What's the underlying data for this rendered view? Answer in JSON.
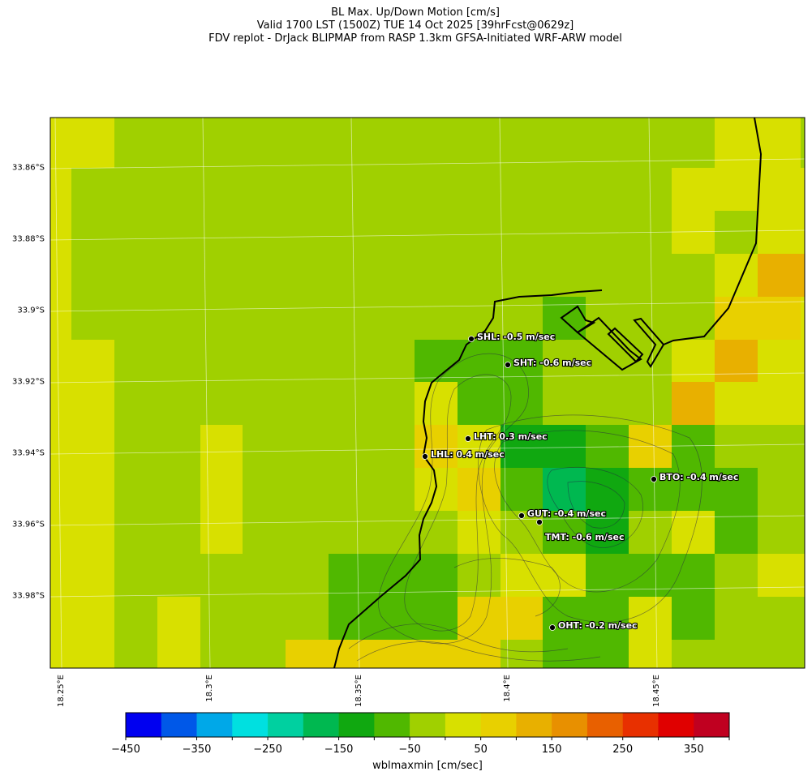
{
  "title": {
    "line1": "BL Max. Up/Down Motion [cm/s]",
    "line2": "Valid 1700 LST (1500Z) TUE 14 Oct 2025 [39hrFcst@0629z]",
    "line3": "FDV replot - DrJack BLIPMAP from RASP 1.3km GFSA-Initiated WRF-ARW model"
  },
  "lat_labels": [
    "33.86°S",
    "33.88°S",
    "33.9°S",
    "33.92°S",
    "33.94°S",
    "33.96°S",
    "33.98°S"
  ],
  "lon_labels": [
    "18.25°E",
    "18.3°E",
    "18.35°E",
    "18.4°E",
    "18.45°E"
  ],
  "colorbar": {
    "label": "wblmaxmin [cm/sec]",
    "ticks": [
      "−450",
      "−350",
      "−250",
      "−150",
      "−50",
      "50",
      "150",
      "250",
      "350"
    ],
    "colors": [
      "#0000f0",
      "#0058e8",
      "#00a8e8",
      "#00e0e0",
      "#00d0a0",
      "#00b850",
      "#10a810",
      "#50b800",
      "#a0d000",
      "#d8e000",
      "#e8d000",
      "#e8b000",
      "#e89000",
      "#e86000",
      "#e83000",
      "#e00000",
      "#c00020"
    ]
  },
  "grid_levels": [
    [
      9,
      9,
      8,
      8,
      8,
      8,
      8,
      8,
      8,
      8,
      8,
      8,
      8,
      8,
      8,
      8,
      9,
      9,
      8
    ],
    [
      9,
      8,
      8,
      8,
      8,
      8,
      8,
      8,
      8,
      8,
      8,
      8,
      8,
      8,
      8,
      9,
      9,
      9,
      9
    ],
    [
      9,
      8,
      8,
      8,
      8,
      8,
      8,
      8,
      8,
      8,
      8,
      8,
      8,
      8,
      8,
      9,
      8,
      9,
      9
    ],
    [
      9,
      8,
      8,
      8,
      8,
      8,
      8,
      8,
      8,
      8,
      8,
      8,
      8,
      8,
      8,
      8,
      9,
      11,
      11
    ],
    [
      9,
      8,
      8,
      8,
      8,
      8,
      8,
      8,
      8,
      8,
      8,
      8,
      7,
      8,
      8,
      8,
      10,
      10,
      9
    ],
    [
      9,
      9,
      8,
      8,
      8,
      8,
      8,
      8,
      8,
      7,
      7,
      7,
      8,
      8,
      8,
      9,
      11,
      9,
      9
    ],
    [
      9,
      9,
      8,
      8,
      8,
      8,
      8,
      8,
      8,
      9,
      7,
      7,
      8,
      8,
      8,
      11,
      9,
      9,
      9
    ],
    [
      9,
      9,
      8,
      8,
      9,
      8,
      8,
      8,
      8,
      10,
      9,
      6,
      6,
      7,
      10,
      7,
      8,
      8,
      8
    ],
    [
      9,
      9,
      8,
      8,
      9,
      8,
      8,
      8,
      8,
      9,
      10,
      7,
      5,
      6,
      7,
      7,
      7,
      8,
      8
    ],
    [
      9,
      9,
      8,
      8,
      9,
      8,
      8,
      8,
      8,
      8,
      9,
      8,
      7,
      6,
      8,
      9,
      7,
      8,
      8
    ],
    [
      9,
      9,
      8,
      8,
      8,
      8,
      8,
      7,
      7,
      7,
      8,
      9,
      9,
      7,
      7,
      7,
      8,
      9,
      9
    ],
    [
      9,
      9,
      8,
      9,
      8,
      8,
      8,
      7,
      7,
      7,
      10,
      10,
      7,
      7,
      9,
      7,
      8,
      8,
      8
    ],
    [
      9,
      9,
      8,
      9,
      8,
      8,
      10,
      10,
      10,
      10,
      10,
      8,
      7,
      7,
      9,
      8,
      8,
      8,
      8
    ]
  ],
  "stations": [
    {
      "label": "SHL: -0.5 m/sec"
    },
    {
      "label": "SHT: -0.6 m/sec"
    },
    {
      "label": "LHT: 0.3 m/sec"
    },
    {
      "label": "LHL: 0.4 m/sec"
    },
    {
      "label": "BTO: -0.4 m/sec"
    },
    {
      "label": "GUT: -0.4 m/sec"
    },
    {
      "label": "TMT: -0.6 m/sec"
    },
    {
      "label": "OHT: -0.2 m/sec"
    }
  ]
}
